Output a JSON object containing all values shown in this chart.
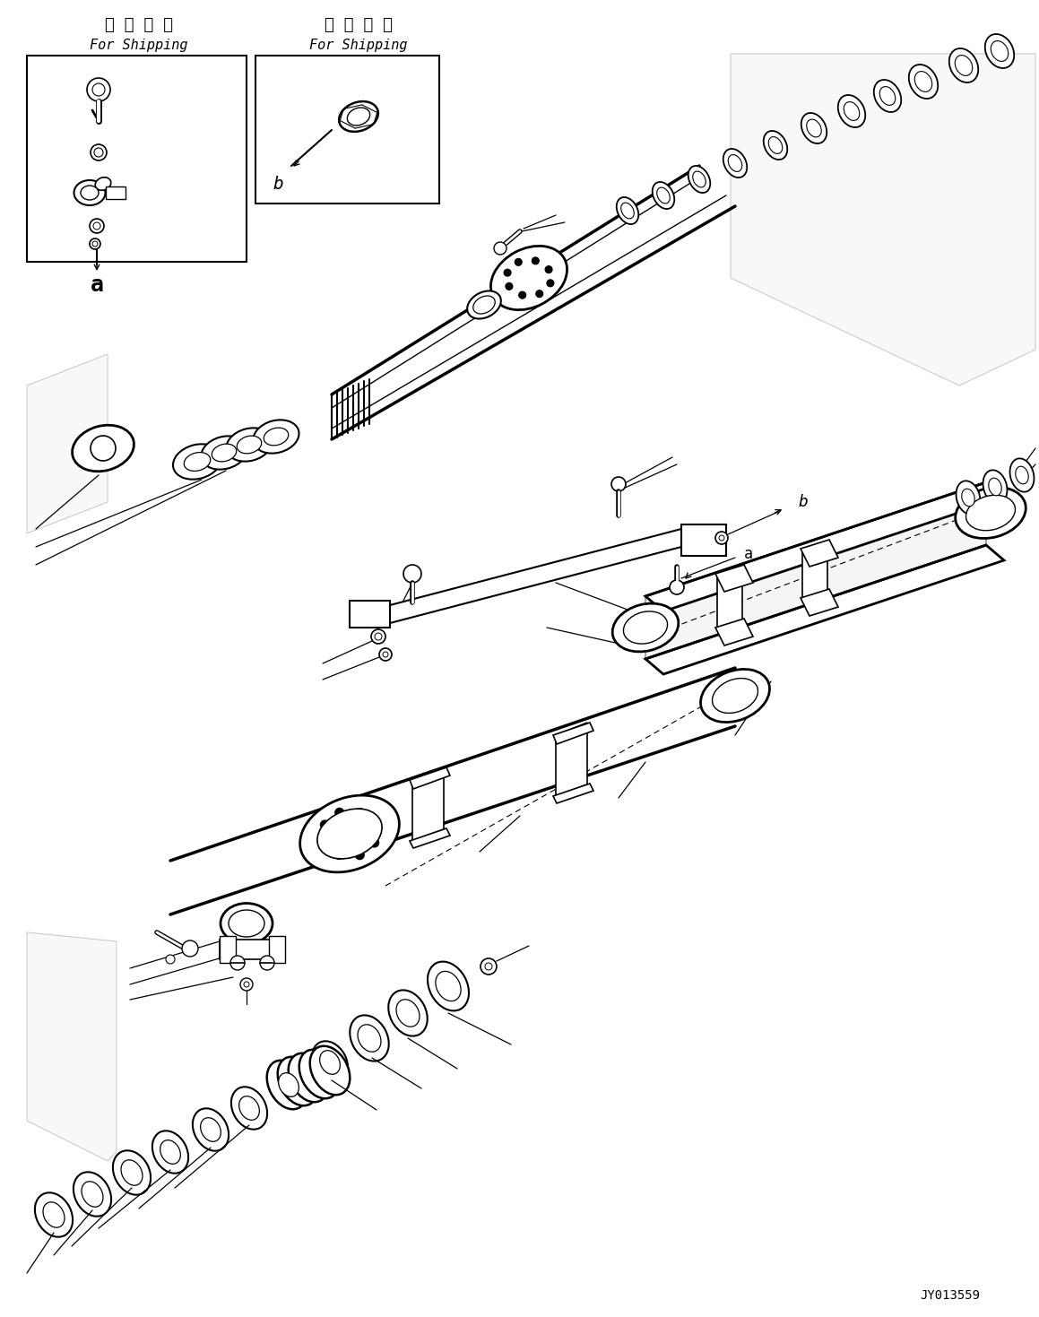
{
  "bg_color": "#ffffff",
  "line_color": "#000000",
  "title_code": "JY013559",
  "figsize": [
    11.59,
    14.69
  ],
  "dpi": 100,
  "shipping1_text1": "運 戱 部 品",
  "shipping1_text2": "For Shipping",
  "shipping2_text1": "運 戱 部 品",
  "shipping2_text2": "For Shipping"
}
